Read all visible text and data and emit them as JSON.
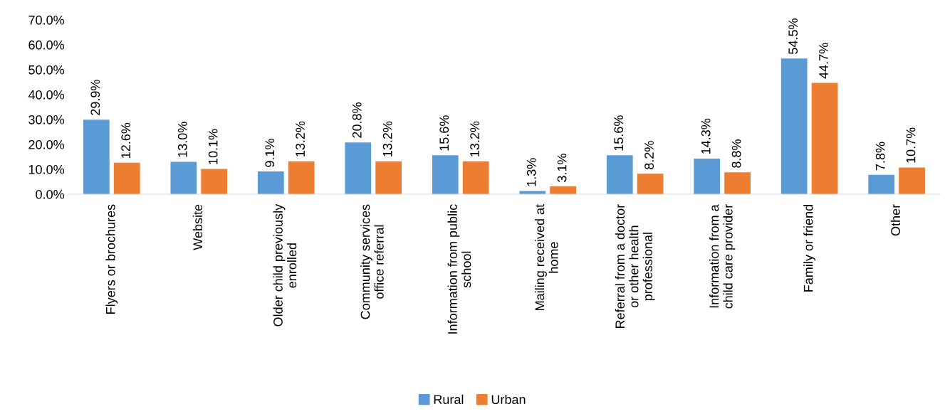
{
  "chart_data": {
    "type": "bar",
    "categories": [
      "Flyers or brochures",
      "Website",
      "Older child previously enrolled",
      "Community services office referral",
      "Information from public school",
      "Mailing received at home",
      "Referral from a doctor or other health professional",
      "Information from a child care provider",
      "Family or friend",
      "Other"
    ],
    "series": [
      {
        "name": "Rural",
        "color": "#5b9bd5",
        "values": [
          29.9,
          13.0,
          9.1,
          20.8,
          15.6,
          1.3,
          15.6,
          14.3,
          54.5,
          7.8
        ],
        "value_labels": [
          "29.9%",
          "13.0%",
          "9.1%",
          "20.8%",
          "15.6%",
          "1.3%",
          "15.6%",
          "14.3%",
          "54.5%",
          "7.8%"
        ]
      },
      {
        "name": "Urban",
        "color": "#ed7d31",
        "values": [
          12.6,
          10.1,
          13.2,
          13.2,
          13.2,
          3.1,
          8.2,
          8.8,
          44.7,
          10.7
        ],
        "value_labels": [
          "12.6%",
          "10.1%",
          "13.2%",
          "13.2%",
          "13.2%",
          "3.1%",
          "8.2%",
          "8.8%",
          "44.7%",
          "10.7%"
        ]
      }
    ],
    "ylim": [
      0,
      70
    ],
    "yticks": [
      {
        "value": 0,
        "label": "0.0%"
      },
      {
        "value": 10,
        "label": "10.0%"
      },
      {
        "value": 20,
        "label": "20.0%"
      },
      {
        "value": 30,
        "label": "30.0%"
      },
      {
        "value": 40,
        "label": "40.0%"
      },
      {
        "value": 50,
        "label": "50.0%"
      },
      {
        "value": 60,
        "label": "60.0%"
      },
      {
        "value": 70,
        "label": "70.0%"
      }
    ],
    "grid": false,
    "legend": "bottom"
  }
}
